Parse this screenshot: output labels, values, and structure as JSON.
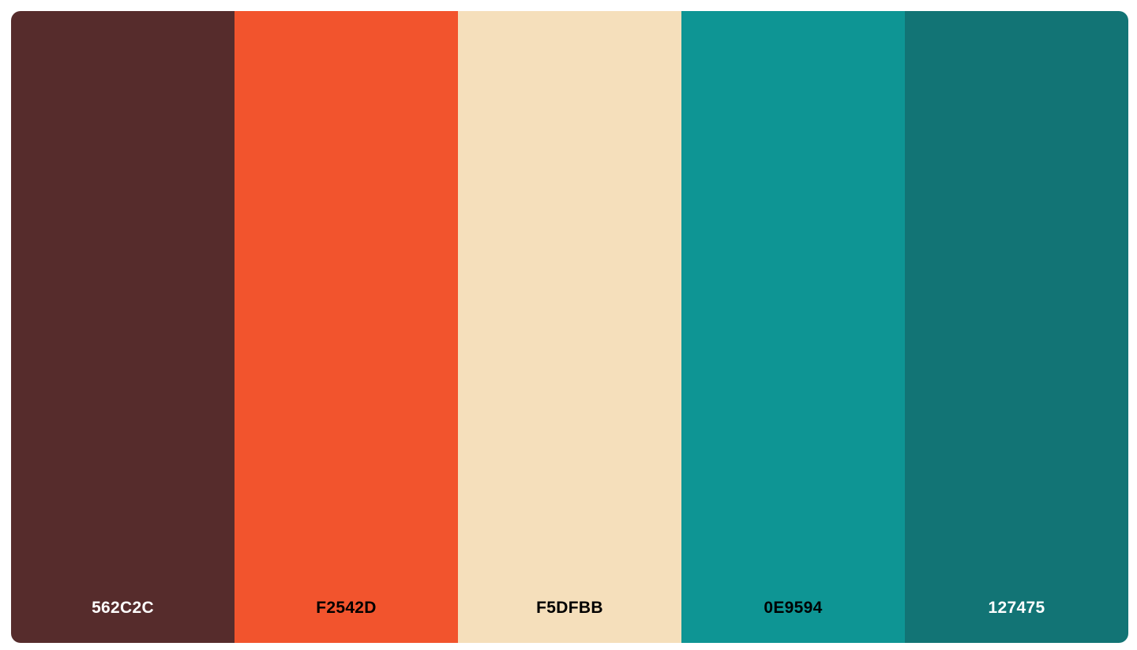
{
  "palette": {
    "swatches": [
      {
        "hex": "562C2C",
        "color": "#562C2C",
        "text_color": "#FFFFFF"
      },
      {
        "hex": "F2542D",
        "color": "#F2542D",
        "text_color": "#000000"
      },
      {
        "hex": "F5DFBB",
        "color": "#F5DFBB",
        "text_color": "#000000"
      },
      {
        "hex": "0E9594",
        "color": "#0E9594",
        "text_color": "#000000"
      },
      {
        "hex": "127475",
        "color": "#127475",
        "text_color": "#FFFFFF"
      }
    ]
  }
}
